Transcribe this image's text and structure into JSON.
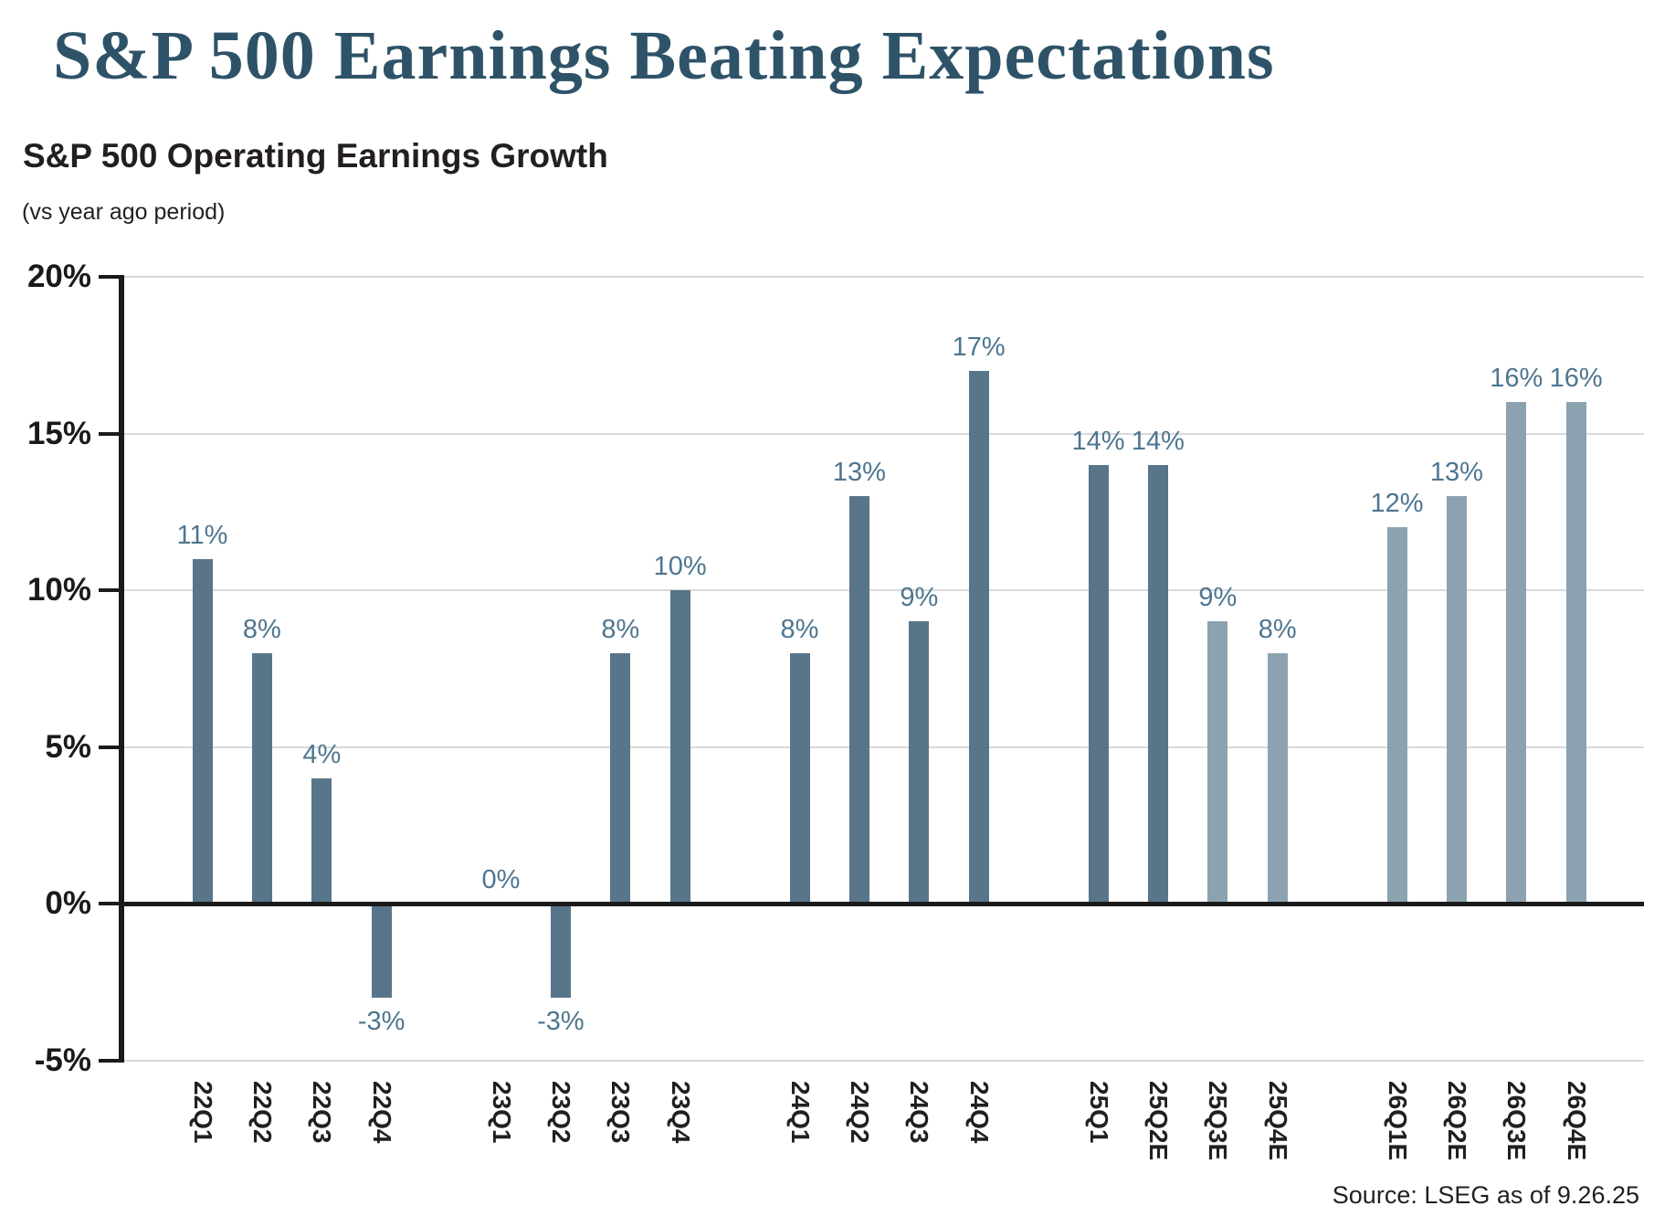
{
  "page": {
    "title": "S&P 500 Earnings Beating Expectations",
    "source": "Source: LSEG as of 9.26.25"
  },
  "chart_data": {
    "type": "bar",
    "title": "S&P 500 Operating Earnings Growth",
    "subtitle": "(vs year ago period)",
    "categories": [
      "22Q1",
      "22Q2",
      "22Q3",
      "22Q4",
      "23Q1",
      "23Q2",
      "23Q3",
      "23Q4",
      "24Q1",
      "24Q2",
      "24Q3",
      "24Q4",
      "25Q1",
      "25Q2E",
      "25Q3E",
      "25Q4E",
      "26Q1E",
      "26Q2E",
      "26Q3E",
      "26Q4E"
    ],
    "values": [
      11,
      8,
      4,
      -3,
      0,
      -3,
      8,
      10,
      8,
      13,
      9,
      17,
      14,
      14,
      9,
      8,
      12,
      13,
      16,
      16
    ],
    "bar_shades": [
      "dark",
      "dark",
      "dark",
      "dark",
      "dark",
      "dark",
      "dark",
      "dark",
      "dark",
      "dark",
      "dark",
      "dark",
      "dark",
      "dark",
      "light",
      "light",
      "light",
      "light",
      "light",
      "light"
    ],
    "value_labels": [
      "11%",
      "8%",
      "4%",
      "-3%",
      "0%",
      "-3%",
      "8%",
      "10%",
      "8%",
      "13%",
      "9%",
      "17%",
      "14%",
      "14%",
      "9%",
      "8%",
      "12%",
      "13%",
      "16%",
      "16%"
    ],
    "yticks": [
      20,
      15,
      10,
      5,
      0,
      -5
    ],
    "ytick_labels": [
      "20%",
      "15%",
      "10%",
      "5%",
      "0%",
      "-5%"
    ],
    "gridline_values": [
      20,
      15,
      10,
      5,
      -5
    ],
    "ylim": [
      -5,
      20
    ],
    "xlabel": "",
    "ylabel": "",
    "legend": "none",
    "grid": "horizontal",
    "source": "Source: LSEG as of 9.26.25",
    "colors": {
      "bar_dark": "#58758a",
      "bar_light": "#8ca2b0",
      "value_label": "#4e7690",
      "title": "#2e5368",
      "text": "#231f20",
      "gridline": "#d9d9d9",
      "axis": "#1a1a1a"
    }
  }
}
